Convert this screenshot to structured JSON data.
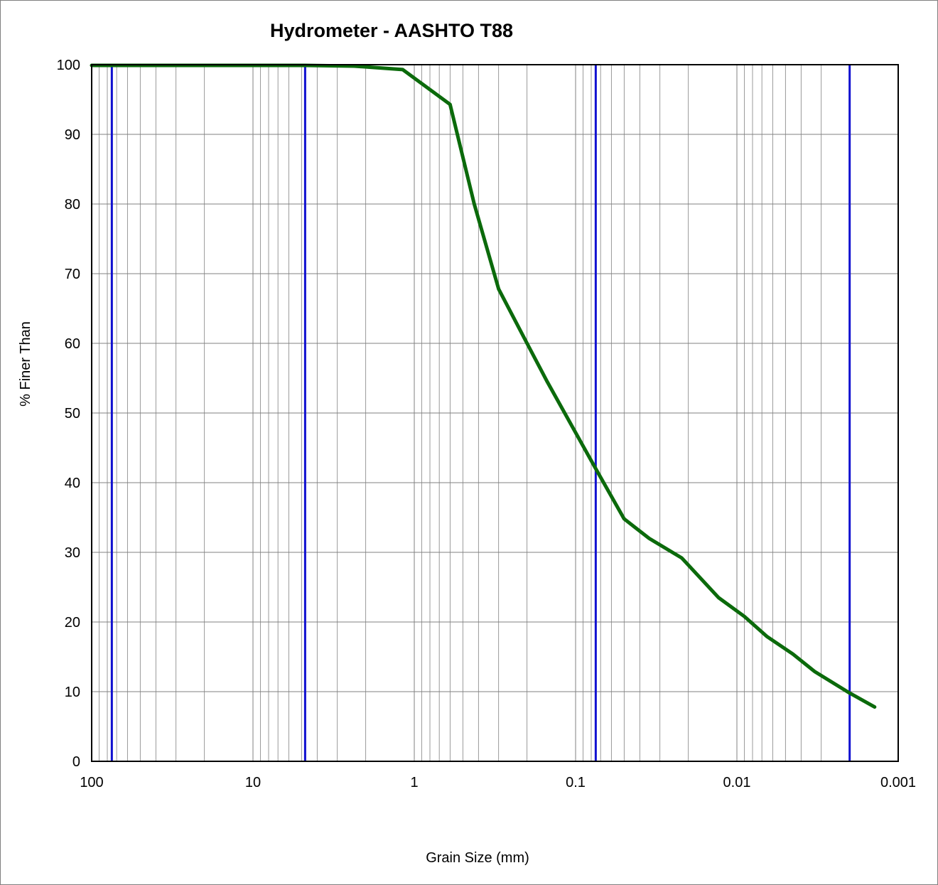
{
  "chart_data": {
    "type": "line",
    "title": "Hydrometer - AASHTO T88",
    "xlabel": "Grain Size (mm)",
    "ylabel": "% Finer Than",
    "x_scale": "log",
    "x_reversed": true,
    "xlim": [
      100,
      0.001
    ],
    "ylim": [
      0,
      100
    ],
    "x_ticks": [
      {
        "value": 100,
        "label": "100"
      },
      {
        "value": 10,
        "label": "10"
      },
      {
        "value": 1,
        "label": "1"
      },
      {
        "value": 0.1,
        "label": "0.1"
      },
      {
        "value": 0.01,
        "label": "0.01"
      },
      {
        "value": 0.001,
        "label": "0.001"
      }
    ],
    "y_ticks": [
      0,
      10,
      20,
      30,
      40,
      50,
      60,
      70,
      80,
      90,
      100
    ],
    "grid": true,
    "minor_grid": true,
    "legend": "none",
    "boundary_lines": [
      75,
      4.75,
      0.075,
      0.002
    ],
    "series": [
      {
        "color": "#0b6a0b",
        "x": [
          100,
          75,
          50,
          37.5,
          25,
          19,
          12.5,
          9.5,
          4.75,
          2.36,
          1.18,
          0.6,
          0.425,
          0.3,
          0.2,
          0.15,
          0.075,
          0.05,
          0.035,
          0.022,
          0.013,
          0.009,
          0.0065,
          0.0045,
          0.0033,
          0.002,
          0.0014
        ],
        "y": [
          99.9,
          99.9,
          99.9,
          99.9,
          99.9,
          99.9,
          99.9,
          99.9,
          99.9,
          99.8,
          99.3,
          94.3,
          80.0,
          67.8,
          60.0,
          54.5,
          42.0,
          34.8,
          32.0,
          29.2,
          23.5,
          20.8,
          17.9,
          15.4,
          12.9,
          9.8,
          7.8
        ]
      }
    ],
    "colors": {
      "boundary": "#1010d0",
      "grid": "#808080",
      "frame": "#000000",
      "outer_border": "#808080"
    }
  }
}
